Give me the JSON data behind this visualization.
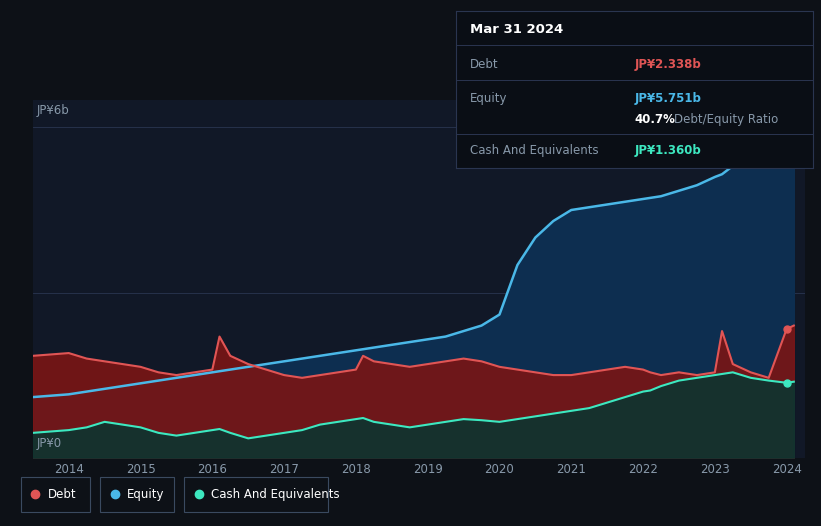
{
  "bg_color": "#0d1117",
  "plot_bg_color": "#111827",
  "tooltip": {
    "title": "Mar 31 2024",
    "debt_label": "Debt",
    "debt_value": "JP¥2.338b",
    "equity_label": "Equity",
    "equity_value": "JP¥5.751b",
    "ratio": "40.7%",
    "ratio_label": "Debt/Equity Ratio",
    "cash_label": "Cash And Equivalents",
    "cash_value": "JP¥1.360b"
  },
  "y_label_top": "JP¥6b",
  "y_label_bottom": "JP¥0",
  "debt_color": "#e05555",
  "equity_color": "#4ab8e8",
  "cash_color": "#3de8c0",
  "debt_fill_color": "#7a1515",
  "equity_fill_color": "#0d2e50",
  "cash_fill_color": "#0d3530",
  "legend": [
    {
      "label": "Debt",
      "color": "#e05555"
    },
    {
      "label": "Equity",
      "color": "#4ab8e8"
    },
    {
      "label": "Cash And Equivalents",
      "color": "#3de8c0"
    }
  ],
  "years": [
    2013.5,
    2014.0,
    2014.25,
    2014.5,
    2014.75,
    2015.0,
    2015.25,
    2015.5,
    2015.75,
    2016.0,
    2016.1,
    2016.25,
    2016.5,
    2016.75,
    2017.0,
    2017.25,
    2017.5,
    2017.75,
    2018.0,
    2018.1,
    2018.25,
    2018.5,
    2018.75,
    2019.0,
    2019.25,
    2019.5,
    2019.75,
    2020.0,
    2020.25,
    2020.5,
    2020.75,
    2021.0,
    2021.25,
    2021.5,
    2021.75,
    2022.0,
    2022.1,
    2022.25,
    2022.5,
    2022.75,
    2023.0,
    2023.1,
    2023.25,
    2023.5,
    2023.75,
    2024.0,
    2024.1
  ],
  "debt": [
    1.85,
    1.9,
    1.8,
    1.75,
    1.7,
    1.65,
    1.55,
    1.5,
    1.55,
    1.6,
    2.2,
    1.85,
    1.7,
    1.6,
    1.5,
    1.45,
    1.5,
    1.55,
    1.6,
    1.85,
    1.75,
    1.7,
    1.65,
    1.7,
    1.75,
    1.8,
    1.75,
    1.65,
    1.6,
    1.55,
    1.5,
    1.5,
    1.55,
    1.6,
    1.65,
    1.6,
    1.55,
    1.5,
    1.55,
    1.5,
    1.55,
    2.3,
    1.7,
    1.55,
    1.45,
    2.338,
    2.4
  ],
  "equity": [
    1.1,
    1.15,
    1.2,
    1.25,
    1.3,
    1.35,
    1.4,
    1.45,
    1.5,
    1.55,
    1.57,
    1.6,
    1.65,
    1.7,
    1.75,
    1.8,
    1.85,
    1.9,
    1.95,
    1.97,
    2.0,
    2.05,
    2.1,
    2.15,
    2.2,
    2.3,
    2.4,
    2.6,
    3.5,
    4.0,
    4.3,
    4.5,
    4.55,
    4.6,
    4.65,
    4.7,
    4.72,
    4.75,
    4.85,
    4.95,
    5.1,
    5.15,
    5.3,
    5.5,
    5.6,
    5.751,
    5.8
  ],
  "cash": [
    0.45,
    0.5,
    0.55,
    0.65,
    0.6,
    0.55,
    0.45,
    0.4,
    0.45,
    0.5,
    0.52,
    0.45,
    0.35,
    0.4,
    0.45,
    0.5,
    0.6,
    0.65,
    0.7,
    0.72,
    0.65,
    0.6,
    0.55,
    0.6,
    0.65,
    0.7,
    0.68,
    0.65,
    0.7,
    0.75,
    0.8,
    0.85,
    0.9,
    1.0,
    1.1,
    1.2,
    1.22,
    1.3,
    1.4,
    1.45,
    1.5,
    1.52,
    1.55,
    1.45,
    1.4,
    1.36,
    1.38
  ]
}
